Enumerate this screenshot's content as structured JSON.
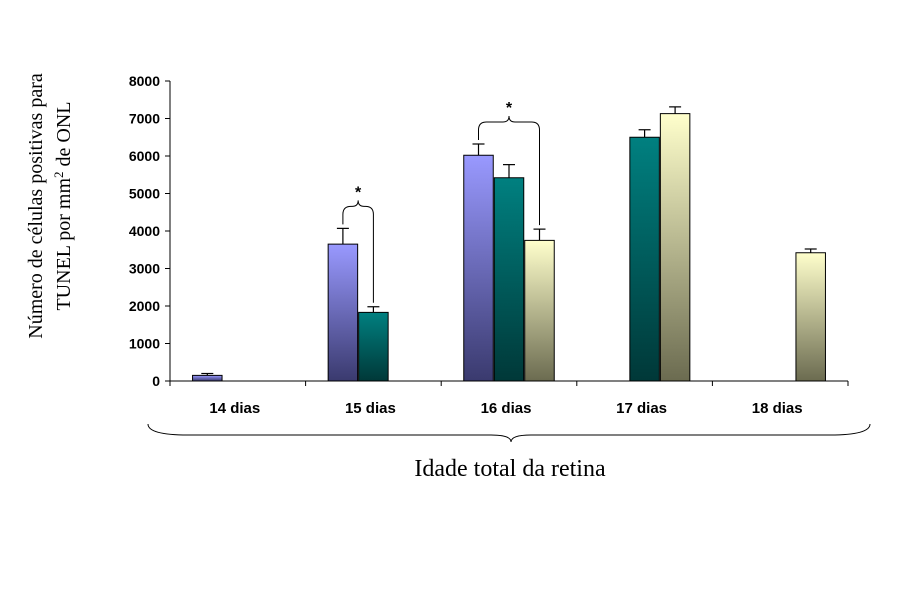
{
  "chart_data": {
    "type": "bar",
    "title": "",
    "xlabel": "Idade total da retina",
    "ylabel_line1": "Número de células positivas para",
    "ylabel_line2_pre": "TUNEL por mm",
    "ylabel_line2_sup": "2",
    "ylabel_line2_post": " de ONL",
    "ylim": [
      0,
      8000
    ],
    "yticks": [
      "0",
      "1000",
      "2000",
      "3000",
      "4000",
      "5000",
      "6000",
      "7000",
      "8000"
    ],
    "categories": [
      "14 dias",
      "15 dias",
      "16 dias",
      "17 dias",
      "18 dias"
    ],
    "series": [
      {
        "values": [
          150,
          3650,
          6020,
          null,
          null
        ],
        "errors": [
          50,
          420,
          300,
          null,
          null
        ],
        "color_top": "#9999ff",
        "color_bottom": "#3a3a6e"
      },
      {
        "values": [
          null,
          1830,
          5420,
          6500,
          null
        ],
        "errors": [
          null,
          150,
          350,
          200,
          null
        ],
        "color_top": "#008080",
        "color_bottom": "#003838"
      },
      {
        "values": [
          null,
          null,
          3750,
          7130,
          3420
        ],
        "errors": [
          null,
          null,
          300,
          180,
          100
        ],
        "color_top": "#ffffcc",
        "color_bottom": "#6b6b50"
      }
    ],
    "annotations": [
      {
        "text": "*",
        "category": "15 dias",
        "from_series": 0,
        "to_series": 1
      },
      {
        "text": "*",
        "category": "16 dias",
        "from_series": 0,
        "to_series": 2
      }
    ],
    "grid": false,
    "legend": "none"
  }
}
